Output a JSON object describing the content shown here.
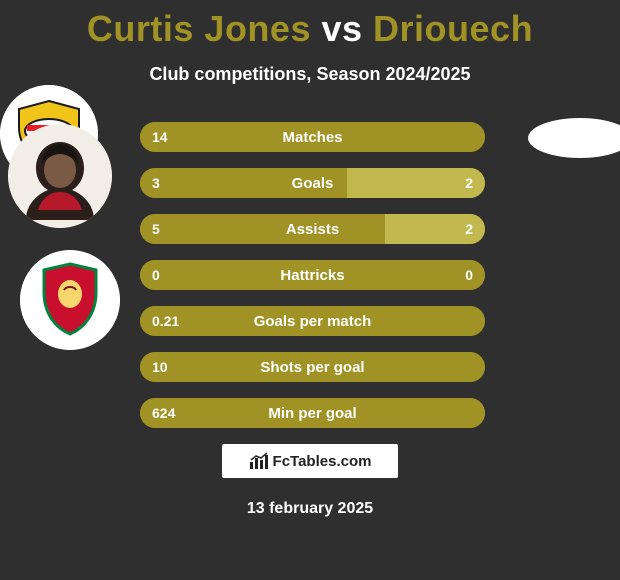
{
  "background_color": "#2f2f2f",
  "title": {
    "left": "Curtis Jones",
    "vs": "vs",
    "right": "Driouech",
    "left_color": "#a09224",
    "vs_color": "#ffffff",
    "right_color": "#a09224"
  },
  "subtitle": "Club competitions, Season 2024/2025",
  "bars": {
    "left_color": "#a09224",
    "right_color": "#c1b84e",
    "track_color": "#a09224",
    "label_color": "#ffffff",
    "rows": [
      {
        "label": "Matches",
        "left_val": "14",
        "right_val": "",
        "left_frac": 1.0,
        "right_frac": 0.0
      },
      {
        "label": "Goals",
        "left_val": "3",
        "right_val": "2",
        "left_frac": 0.6,
        "right_frac": 0.4
      },
      {
        "label": "Assists",
        "left_val": "5",
        "right_val": "2",
        "left_frac": 0.71,
        "right_frac": 0.29
      },
      {
        "label": "Hattricks",
        "left_val": "0",
        "right_val": "0",
        "left_frac": 1.0,
        "right_frac": 0.0
      },
      {
        "label": "Goals per match",
        "left_val": "0.21",
        "right_val": "",
        "left_frac": 1.0,
        "right_frac": 0.0
      },
      {
        "label": "Shots per goal",
        "left_val": "10",
        "right_val": "",
        "left_frac": 1.0,
        "right_frac": 0.0
      },
      {
        "label": "Min per goal",
        "left_val": "624",
        "right_val": "",
        "left_frac": 1.0,
        "right_frac": 0.0
      }
    ]
  },
  "footer_brand": "FcTables.com",
  "date": "13 february 2025",
  "avatars": {
    "player_left_name": "curtis-jones-photo",
    "club_left_name": "liverpool-crest",
    "player_right_name": "driouech-photo",
    "club_right_name": "psv-crest"
  }
}
